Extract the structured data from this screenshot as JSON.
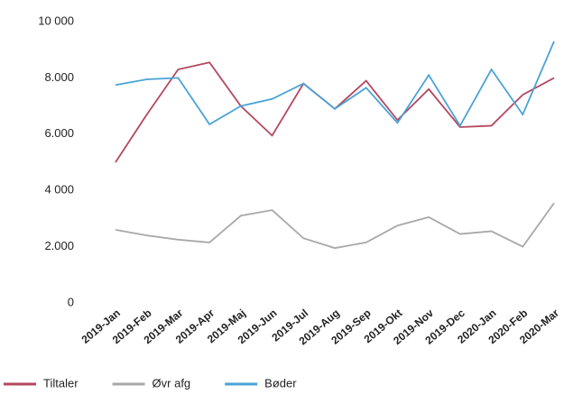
{
  "chart_data": {
    "type": "line",
    "categories": [
      "2019-Jan",
      "2019-Feb",
      "2019-Mar",
      "2019-Apr",
      "2019-Maj",
      "2019-Jun",
      "2019-Jul",
      "2019-Aug",
      "2019-Sep",
      "2019-Okt",
      "2019-Nov",
      "2019-Dec",
      "2020-Jan",
      "2020-Feb",
      "2020-Mar"
    ],
    "series": [
      {
        "name": "Tiltaler",
        "color": "#b5475f",
        "values": [
          5000,
          6700,
          8300,
          8550,
          7000,
          5950,
          7800,
          6900,
          7900,
          6500,
          7600,
          6250,
          6300,
          7400,
          8000
        ]
      },
      {
        "name": "Øvr afg",
        "color": "#a8a8a8",
        "values": [
          2600,
          2400,
          2250,
          2150,
          3100,
          3300,
          2300,
          1950,
          2150,
          2750,
          3050,
          2450,
          2550,
          2000,
          3550
        ]
      },
      {
        "name": "Bøder",
        "color": "#4aa3d6",
        "values": [
          7750,
          7950,
          8000,
          6350,
          7000,
          7250,
          7800,
          6900,
          7650,
          6400,
          8100,
          6300,
          8300,
          6700,
          9300
        ]
      }
    ],
    "ylim": [
      0,
      10000
    ],
    "yticks": [
      0,
      {
        "value": 2000,
        "label": "2.000"
      },
      {
        "value": 4000,
        "label": "4 000"
      },
      {
        "value": 6000,
        "label": "6.000"
      },
      {
        "value": 8000,
        "label": "8.000"
      },
      {
        "value": 10000,
        "label": "10 000"
      }
    ],
    "grid": false,
    "legend": "bottom-left"
  }
}
